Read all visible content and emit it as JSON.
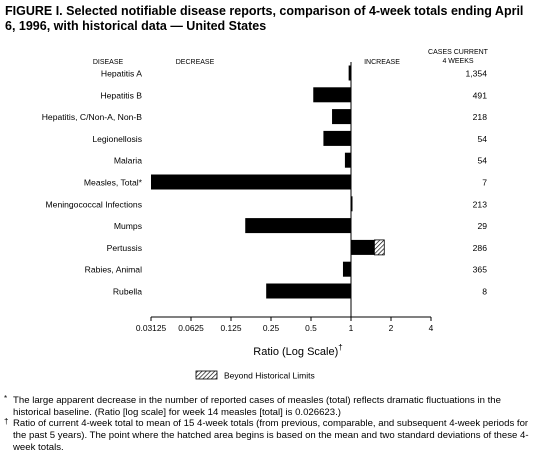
{
  "title": "FIGURE I. Selected notifiable disease reports, comparison of 4-week totals ending April 6, 1996, with historical data — United States",
  "headers": {
    "disease": "DISEASE",
    "decrease": "DECREASE",
    "increase": "INCREASE",
    "cases_line1": "CASES CURRENT",
    "cases_line2": "4 WEEKS"
  },
  "legend": {
    "label": "Beyond Historical Limits"
  },
  "colors": {
    "bar": "#000000",
    "hatch": "#000000",
    "background": "#ffffff"
  },
  "chart_data": {
    "type": "bar",
    "orientation": "horizontal",
    "scale": "log2",
    "xlim": [
      0.03125,
      4
    ],
    "baseline": 1,
    "xlabel": "Ratio (Log Scale)",
    "xlabel_mark": "†",
    "xticks": [
      0.03125,
      0.0625,
      0.125,
      0.25,
      0.5,
      1,
      2,
      4
    ],
    "xtick_labels": [
      "0.03125",
      "0.0625",
      "0.125",
      "0.25",
      "0.5",
      "1",
      "2",
      "4"
    ],
    "categories": [
      "Hepatitis A",
      "Hepatitis B",
      "Hepatitis, C/Non-A, Non-B",
      "Legionellosis",
      "Malaria",
      "Measles, Total*",
      "Meningococcal Infections",
      "Mumps",
      "Pertussis",
      "Rabies, Animal",
      "Rubella"
    ],
    "values": [
      0.96,
      0.52,
      0.72,
      0.62,
      0.9,
      0.026623,
      1.02,
      0.16,
      1.78,
      0.87,
      0.23
    ],
    "beyond_limits_from": [
      null,
      null,
      null,
      null,
      null,
      null,
      null,
      null,
      1.5,
      null,
      null
    ],
    "cases_current_4_weeks": [
      "1,354",
      "491",
      "218",
      "54",
      "54",
      "7",
      "213",
      "29",
      "286",
      "365",
      "8"
    ]
  },
  "footnotes": [
    {
      "mark": "*",
      "text": "The large apparent decrease in the number of reported cases of measles (total) reflects dramatic fluctuations in the historical baseline. (Ratio [log scale] for week 14 measles [total] is 0.026623.)"
    },
    {
      "mark": "†",
      "text": "Ratio of current 4-week total to mean of 15 4-week totals (from previous, comparable, and subsequent 4-week periods for the past 5 years). The point where the hatched area begins is based on the mean and two standard deviations of these 4-week totals."
    }
  ]
}
